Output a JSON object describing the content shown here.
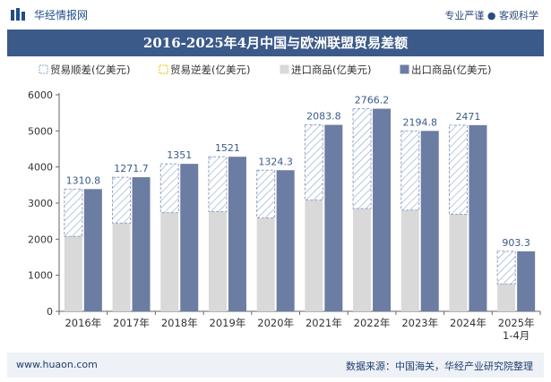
{
  "header": {
    "brand": "华经情报网",
    "tagline": "专业严谨 ● 客观科学"
  },
  "footer": {
    "website": "www.huaon.com",
    "source": "数据来源：中国海关，华经产业研究院整理"
  },
  "colors": {
    "title_bg": "#3b5a8a",
    "export": "#6b7da3",
    "import": "#d9d9d9",
    "balance_stroke": "#8ea3c4",
    "label": "#3b5a8a"
  },
  "chart_data": {
    "type": "bar",
    "title": "2016-2025年4月中国与欧洲联盟贸易差额",
    "categories": [
      "2016年",
      "2017年",
      "2018年",
      "2019年",
      "2020年",
      "2021年",
      "2022年",
      "2023年",
      "2024年",
      "2025年\n1-4月"
    ],
    "ylim": [
      0,
      6000
    ],
    "yticks": [
      0,
      1000,
      2000,
      3000,
      4000,
      5000,
      6000
    ],
    "legend_position": "top",
    "grid": false,
    "legend": [
      "贸易顺差(亿美元)",
      "贸易逆差(亿美元)",
      "进口商品(亿美元)",
      "出口商品(亿美元)"
    ],
    "series": [
      {
        "name": "贸易顺差(亿美元)",
        "values": [
          1310.8,
          1271.7,
          1351,
          1521,
          1324.3,
          2083.8,
          2766.2,
          2194.8,
          2471,
          903.3
        ]
      },
      {
        "name": "贸易逆差(亿美元)",
        "values": [
          0,
          0,
          0,
          0,
          0,
          0,
          0,
          0,
          0,
          0
        ]
      },
      {
        "name": "进口商品(亿美元)",
        "values": [
          2077,
          2445,
          2736,
          2763,
          2587,
          3084,
          2849,
          2805,
          2689,
          760
        ]
      },
      {
        "name": "出口商品(亿美元)",
        "values": [
          3388,
          3717,
          4087,
          4284,
          3911,
          5168,
          5615,
          5000,
          5160,
          1663
        ]
      }
    ],
    "data_labels": [
      "1310.8",
      "1271.7",
      "1351",
      "1521",
      "1324.3",
      "2083.8",
      "2766.2",
      "2194.8",
      "2471",
      "903.3"
    ]
  }
}
